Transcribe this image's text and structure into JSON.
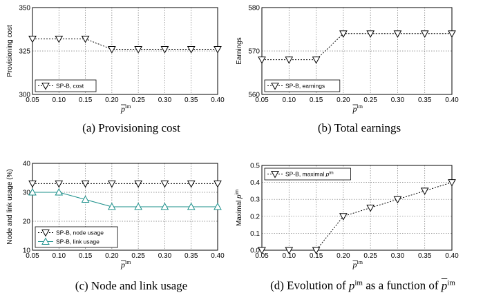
{
  "chart_data": [
    {
      "type": "line",
      "panel": "a",
      "caption": "(a) Provisioning cost",
      "xlabel": "p̄im",
      "ylabel": "Provisioning cost",
      "x": [
        0.05,
        0.1,
        0.15,
        0.2,
        0.25,
        0.3,
        0.35,
        0.4
      ],
      "x_ticks": [
        "0.05",
        "0.10",
        "0.15",
        "0.20",
        "0.25",
        "0.30",
        "0.35",
        "0.40"
      ],
      "ylim": [
        300,
        350
      ],
      "y_ticks": [
        "300",
        "325",
        "350"
      ],
      "grid": true,
      "legend_position": "bottom-left",
      "series": [
        {
          "name": "SP-B, cost",
          "marker": "triangle-down",
          "color": "#000000",
          "line": "dotted",
          "values": [
            332,
            332,
            332,
            326,
            326,
            326,
            326,
            326
          ]
        }
      ]
    },
    {
      "type": "line",
      "panel": "b",
      "caption": "(b) Total earnings",
      "xlabel": "p̄im",
      "ylabel": "Earnings",
      "x": [
        0.05,
        0.1,
        0.15,
        0.2,
        0.25,
        0.3,
        0.35,
        0.4
      ],
      "x_ticks": [
        "0.05",
        "0.10",
        "0.15",
        "0.20",
        "0.25",
        "0.30",
        "0.35",
        "0.40"
      ],
      "ylim": [
        560,
        580
      ],
      "y_ticks": [
        "560",
        "570",
        "580"
      ],
      "grid": true,
      "legend_position": "bottom-left",
      "series": [
        {
          "name": "SP-B, earnings",
          "marker": "triangle-down",
          "color": "#000000",
          "line": "dotted",
          "values": [
            568,
            568,
            568,
            574,
            574,
            574,
            574,
            574
          ]
        }
      ]
    },
    {
      "type": "line",
      "panel": "c",
      "caption": "(c) Node and link usage",
      "xlabel": "p̄im",
      "ylabel": "Node and link usage (%)",
      "x": [
        0.05,
        0.1,
        0.15,
        0.2,
        0.25,
        0.3,
        0.35,
        0.4
      ],
      "x_ticks": [
        "0.05",
        "0.10",
        "0.15",
        "0.20",
        "0.25",
        "0.30",
        "0.35",
        "0.40"
      ],
      "ylim": [
        10,
        40
      ],
      "y_ticks": [
        "10",
        "20",
        "30",
        "40"
      ],
      "grid": true,
      "legend_position": "bottom-left",
      "series": [
        {
          "name": "SP-B, node usage",
          "marker": "triangle-down",
          "color": "#000000",
          "line": "dotted",
          "values": [
            33,
            33,
            33,
            33,
            33,
            33,
            33,
            33
          ]
        },
        {
          "name": "SP-B, link usage",
          "marker": "triangle-up",
          "color": "#1a8f8a",
          "line": "solid",
          "values": [
            30,
            30,
            27.5,
            25,
            25,
            25,
            25,
            25
          ]
        }
      ]
    },
    {
      "type": "line",
      "panel": "d",
      "caption_prefix": "(d) Evolution of",
      "caption_mid": "as a function of",
      "xlabel": "p̄im",
      "ylabel": "Maximal pim",
      "x": [
        0.05,
        0.1,
        0.15,
        0.2,
        0.25,
        0.3,
        0.35,
        0.4
      ],
      "x_ticks": [
        "0.05",
        "0.10",
        "0.15",
        "0.20",
        "0.25",
        "0.30",
        "0.35",
        "0.40"
      ],
      "ylim": [
        0,
        0.5
      ],
      "y_ticks": [
        "0.0",
        "0.1",
        "0.2",
        "0.3",
        "0.4",
        "0.5"
      ],
      "grid": true,
      "legend_position": "top-left",
      "series": [
        {
          "name": "SP-B, maximal pim",
          "marker": "triangle-down",
          "color": "#000000",
          "line": "dotted",
          "values": [
            0.0,
            0.0,
            0.0,
            0.2,
            0.25,
            0.3,
            0.35,
            0.4
          ]
        }
      ]
    }
  ]
}
